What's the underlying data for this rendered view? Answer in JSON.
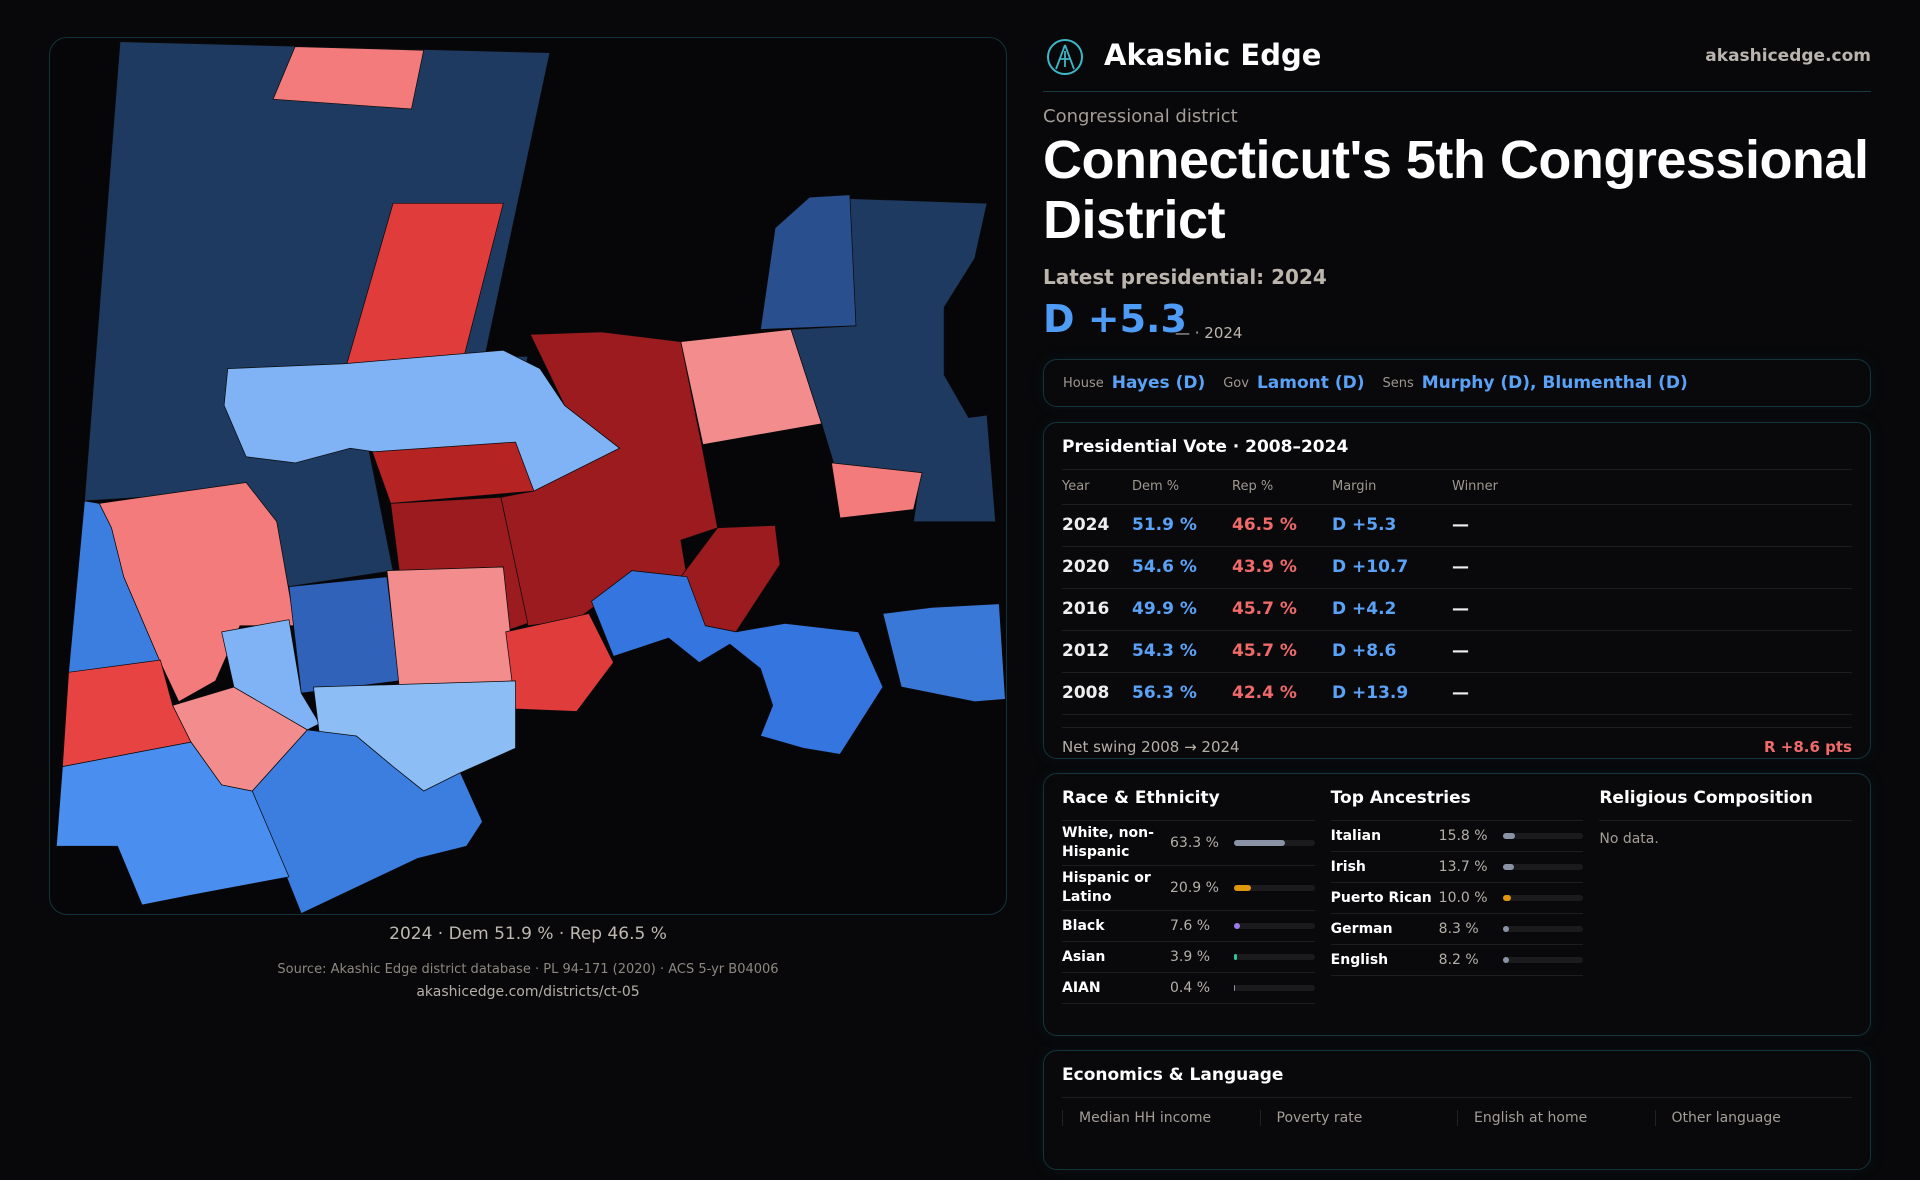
{
  "brand": {
    "name": "Akashic Edge",
    "site": "akashicedge.com"
  },
  "header": {
    "kicker": "Congressional district",
    "title": "Connecticut's 5th Congressional District",
    "latest": "Latest presidential: 2024",
    "margin": "D +5.3",
    "margin_sub": "— · 2024"
  },
  "officials": {
    "house_label": "House",
    "house": "Hayes (D)",
    "gov_label": "Gov",
    "gov": "Lamont (D)",
    "sens_label": "Sens",
    "sens": "Murphy (D), Blumenthal (D)"
  },
  "presidential": {
    "title": "Presidential Vote · 2008–2024",
    "headers": [
      "Year",
      "Dem %",
      "Rep %",
      "Margin",
      "Winner"
    ],
    "rows": [
      {
        "year": "2024",
        "dem": "51.9 %",
        "rep": "46.5 %",
        "margin": "D +5.3",
        "winner": "—"
      },
      {
        "year": "2020",
        "dem": "54.6 %",
        "rep": "43.9 %",
        "margin": "D +10.7",
        "winner": "—"
      },
      {
        "year": "2016",
        "dem": "49.9 %",
        "rep": "45.7 %",
        "margin": "D +4.2",
        "winner": "—"
      },
      {
        "year": "2012",
        "dem": "54.3 %",
        "rep": "45.7 %",
        "margin": "D +8.6",
        "winner": "—"
      },
      {
        "year": "2008",
        "dem": "56.3 %",
        "rep": "42.4 %",
        "margin": "D +13.9",
        "winner": "—"
      }
    ],
    "swing_label": "Net swing 2008 → 2024",
    "swing_value": "R +8.6 pts"
  },
  "race": {
    "title": "Race & Ethnicity",
    "items": [
      {
        "label": "White, non-Hispanic",
        "pct": "63.3 %",
        "value": 63.3,
        "color": "#8a93a6"
      },
      {
        "label": "Hispanic or Latino",
        "pct": "20.9 %",
        "value": 20.9,
        "color": "#e0960f"
      },
      {
        "label": "Black",
        "pct": "7.6 %",
        "value": 7.6,
        "color": "#9a7be8"
      },
      {
        "label": "Asian",
        "pct": "3.9 %",
        "value": 3.9,
        "color": "#2fc39a"
      },
      {
        "label": "AIAN",
        "pct": "0.4 %",
        "value": 0.4,
        "color": "#8a93a6"
      }
    ]
  },
  "ancestry": {
    "title": "Top Ancestries",
    "items": [
      {
        "label": "Italian",
        "pct": "15.8 %",
        "value": 15.8,
        "color": "#8a93a6"
      },
      {
        "label": "Irish",
        "pct": "13.7 %",
        "value": 13.7,
        "color": "#8a93a6"
      },
      {
        "label": "Puerto Rican",
        "pct": "10.0 %",
        "value": 10.0,
        "color": "#e0960f"
      },
      {
        "label": "German",
        "pct": "8.3 %",
        "value": 8.3,
        "color": "#8a93a6"
      },
      {
        "label": "English",
        "pct": "8.2 %",
        "value": 8.2,
        "color": "#8a93a6"
      }
    ]
  },
  "religion": {
    "title": "Religious Composition",
    "empty": "No data."
  },
  "econ": {
    "title": "Economics & Language",
    "cells": [
      "Median HH income",
      "Poverty rate",
      "English at home",
      "Other language"
    ]
  },
  "source": {
    "text": "Source: Akashic Edge district database · PL 94-171 (2020) · ACS 5-yr B04006",
    "url": "akashicedge.com/districts/ct-05"
  },
  "map": {
    "caption": "2024 · Dem 51.9 % · Rep 46.5 %"
  }
}
